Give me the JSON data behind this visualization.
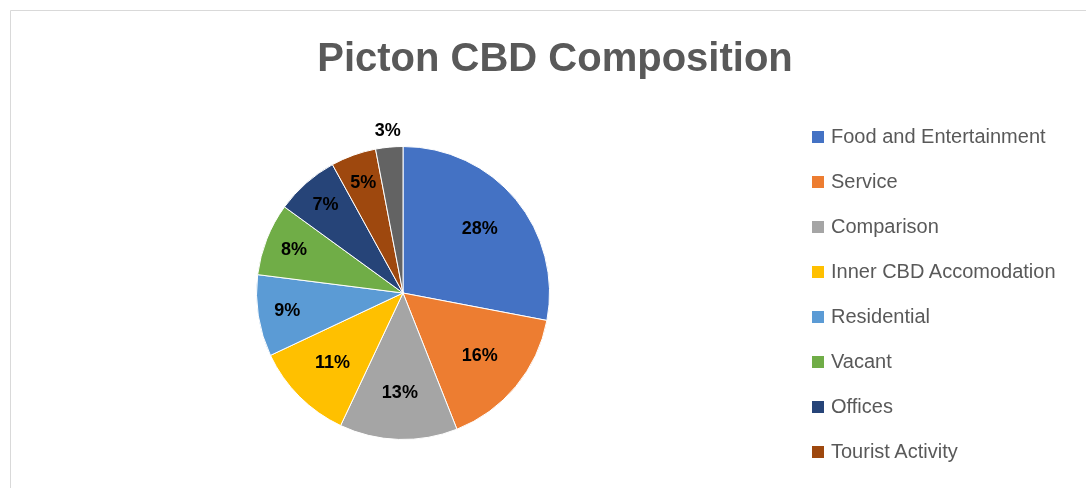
{
  "chart_data": {
    "type": "pie",
    "title": "Picton CBD Composition",
    "categories": [
      "Food and Entertainment",
      "Service",
      "Comparison",
      "Inner CBD Accomodation",
      "Residential",
      "Vacant",
      "Offices",
      "Tourist Activity",
      null
    ],
    "values": [
      28,
      16,
      13,
      11,
      9,
      8,
      7,
      5,
      3
    ],
    "colors": [
      "#4472c4",
      "#ed7d31",
      "#a5a5a5",
      "#ffc000",
      "#5b9bd5",
      "#70ad47",
      "#264478",
      "#9e480e",
      "#636363"
    ],
    "value_labels": [
      "28%",
      "16%",
      "13%",
      "11%",
      "9%",
      "8%",
      "7%",
      "5%",
      "3%"
    ],
    "legend": "right"
  }
}
